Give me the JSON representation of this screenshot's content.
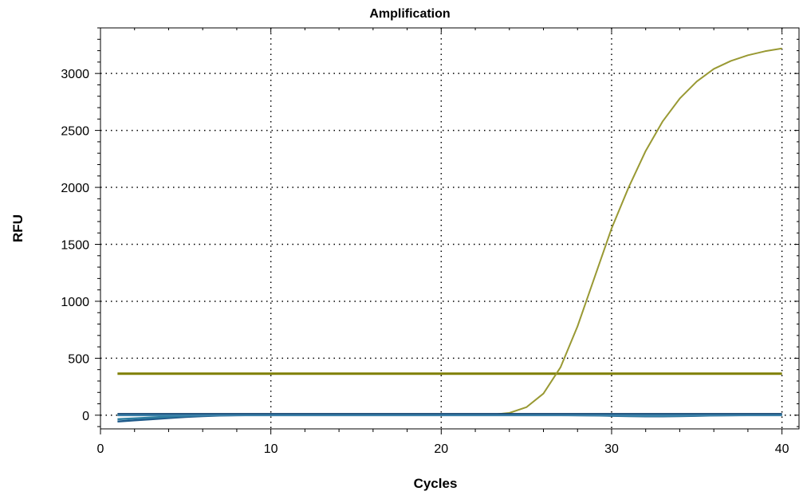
{
  "chart_data": {
    "type": "line",
    "title": "Amplification",
    "xlabel": "Cycles",
    "ylabel": "RFU",
    "xlim": [
      0,
      41
    ],
    "ylim": [
      -120,
      3400
    ],
    "x_ticks": [
      0,
      10,
      20,
      30,
      40
    ],
    "y_ticks": [
      0,
      500,
      1000,
      1500,
      2000,
      2500,
      3000
    ],
    "x_tick_labels": [
      "0",
      "10",
      "20",
      "30",
      "40"
    ],
    "y_tick_labels": [
      "0",
      "500",
      "1000",
      "1500",
      "2000",
      "2500",
      "3000"
    ],
    "grid": true,
    "grid_style": "dotted",
    "legend": "none",
    "threshold": {
      "value": 365,
      "x_range": [
        1,
        40
      ],
      "color": "#7f7f00"
    },
    "series": [
      {
        "color": "#999933",
        "x": [
          1,
          2,
          3,
          4,
          5,
          6,
          7,
          8,
          9,
          10,
          11,
          12,
          13,
          14,
          15,
          16,
          17,
          18,
          19,
          20,
          21,
          22,
          23,
          24,
          25,
          26,
          27,
          28,
          29,
          30,
          31,
          32,
          33,
          34,
          35,
          36,
          37,
          38,
          39,
          40
        ],
        "y": [
          0,
          0,
          0,
          0,
          0,
          0,
          0,
          0,
          0,
          0,
          0,
          0,
          0,
          0,
          0,
          0,
          0,
          0,
          0,
          0,
          0,
          0,
          5,
          20,
          70,
          190,
          420,
          780,
          1210,
          1640,
          2000,
          2320,
          2580,
          2780,
          2930,
          3040,
          3110,
          3160,
          3195,
          3220
        ]
      },
      {
        "color": "#1f5a8a",
        "x": [
          1,
          2,
          3,
          4,
          5,
          6,
          7,
          8,
          9,
          10,
          11,
          12,
          13,
          14,
          15,
          16,
          17,
          18,
          19,
          20,
          21,
          22,
          23,
          24,
          25,
          26,
          27,
          28,
          29,
          30,
          31,
          32,
          33,
          34,
          35,
          36,
          37,
          38,
          39,
          40
        ],
        "y": [
          -55,
          -45,
          -35,
          -25,
          -15,
          -8,
          -3,
          0,
          2,
          2,
          2,
          2,
          2,
          2,
          2,
          2,
          2,
          2,
          2,
          2,
          2,
          2,
          2,
          2,
          2,
          2,
          2,
          0,
          -2,
          -5,
          -8,
          -10,
          -10,
          -8,
          -5,
          -2,
          0,
          2,
          3,
          5
        ]
      },
      {
        "color": "#2f7fa0",
        "x": [
          1,
          2,
          3,
          4,
          5,
          6,
          7,
          8,
          9,
          10,
          11,
          12,
          13,
          14,
          15,
          16,
          17,
          18,
          19,
          20,
          21,
          22,
          23,
          24,
          25,
          26,
          27,
          28,
          29,
          30,
          31,
          32,
          33,
          34,
          35,
          36,
          37,
          38,
          39,
          40
        ],
        "y": [
          -35,
          -28,
          -20,
          -12,
          -6,
          -2,
          0,
          1,
          1,
          1,
          1,
          1,
          1,
          1,
          1,
          1,
          1,
          1,
          1,
          1,
          1,
          1,
          1,
          1,
          1,
          1,
          1,
          0,
          -1,
          -3,
          -5,
          -6,
          -6,
          -5,
          -3,
          -1,
          0,
          1,
          2,
          3
        ]
      },
      {
        "color": "#10406e",
        "x": [
          1,
          2,
          3,
          4,
          5,
          6,
          7,
          8,
          9,
          10,
          11,
          12,
          13,
          14,
          15,
          16,
          17,
          18,
          19,
          20,
          21,
          22,
          23,
          24,
          25,
          26,
          27,
          28,
          29,
          30,
          31,
          32,
          33,
          34,
          35,
          36,
          37,
          38,
          39,
          40
        ],
        "y": [
          10,
          10,
          10,
          10,
          10,
          10,
          10,
          10,
          10,
          10,
          10,
          10,
          10,
          10,
          10,
          10,
          10,
          10,
          10,
          10,
          10,
          10,
          10,
          10,
          10,
          10,
          10,
          10,
          10,
          10,
          10,
          10,
          10,
          10,
          10,
          10,
          10,
          10,
          10,
          10
        ]
      },
      {
        "color": "#3a7fa8",
        "x": [
          1,
          2,
          3,
          4,
          5,
          6,
          7,
          8,
          9,
          10,
          11,
          12,
          13,
          14,
          15,
          16,
          17,
          18,
          19,
          20,
          21,
          22,
          23,
          24,
          25,
          26,
          27,
          28,
          29,
          30,
          31,
          32,
          33,
          34,
          35,
          36,
          37,
          38,
          39,
          40
        ],
        "y": [
          0,
          0,
          0,
          0,
          0,
          0,
          0,
          0,
          0,
          0,
          0,
          0,
          0,
          0,
          0,
          0,
          0,
          0,
          0,
          0,
          0,
          0,
          0,
          0,
          0,
          0,
          0,
          0,
          0,
          0,
          0,
          0,
          0,
          0,
          0,
          0,
          0,
          0,
          0,
          0
        ]
      }
    ]
  }
}
